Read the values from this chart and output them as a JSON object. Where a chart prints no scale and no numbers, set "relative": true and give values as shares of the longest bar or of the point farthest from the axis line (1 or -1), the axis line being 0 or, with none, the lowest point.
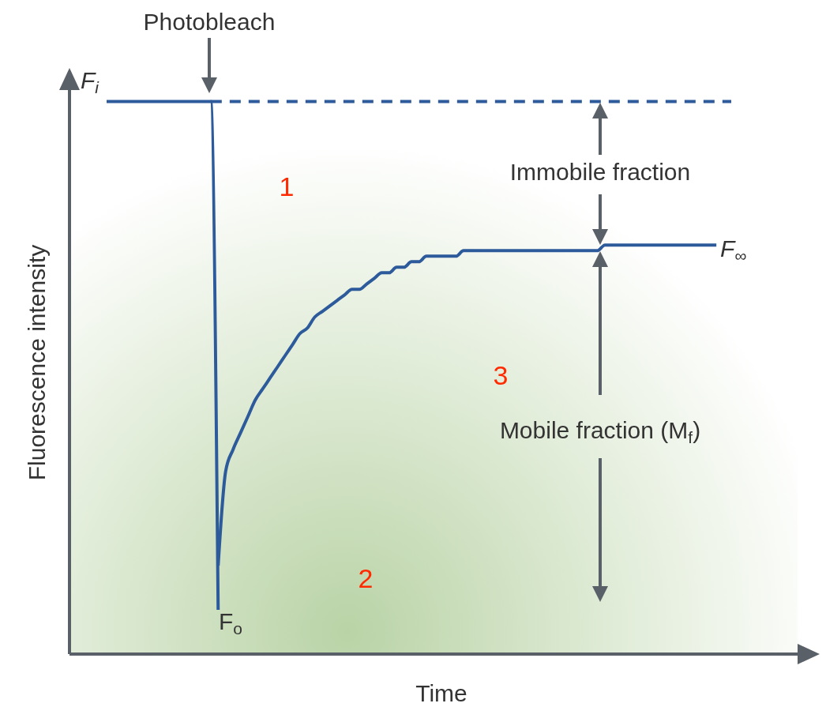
{
  "chart_data": {
    "type": "line",
    "relative": true,
    "xlabel": "Time",
    "ylabel": "Fluorescence intensity",
    "categories": [
      null,
      null,
      null,
      null,
      null,
      null,
      null,
      null,
      null,
      null,
      null,
      null,
      null,
      null,
      null,
      null,
      null,
      null,
      null,
      null,
      null,
      null,
      null,
      null,
      null,
      null,
      null,
      null,
      null,
      null,
      null,
      null,
      null,
      null,
      null,
      null,
      null,
      null,
      null,
      null,
      null,
      null,
      null,
      null,
      null,
      null,
      null,
      null,
      null,
      null,
      null,
      null,
      null,
      null,
      null,
      null,
      null,
      null,
      null,
      null,
      null,
      null,
      null,
      null,
      null,
      null,
      null,
      null,
      null,
      null,
      null,
      null,
      null,
      null,
      null,
      null,
      null,
      null,
      null,
      null,
      null,
      null,
      null,
      null,
      null
    ],
    "series": [
      {
        "color": "#2d5a9a",
        "line_style": "solid",
        "values": [
          1,
          1,
          1,
          1,
          1,
          1,
          1,
          1,
          1,
          1,
          1,
          1,
          1,
          1,
          1,
          0.08,
          null,
          null,
          null,
          null,
          null,
          null,
          null,
          null,
          null,
          null,
          null,
          null,
          null,
          null,
          null,
          null,
          null,
          null,
          null,
          null,
          null,
          null,
          null,
          null,
          null,
          null,
          null,
          null,
          null,
          null,
          null,
          null,
          null,
          null,
          null,
          null,
          null,
          null,
          null,
          null,
          null,
          null,
          null,
          null,
          null,
          null,
          null,
          null,
          null,
          null,
          null,
          null,
          null,
          null,
          null,
          null,
          null,
          null,
          null,
          null,
          null,
          null,
          null,
          null,
          null,
          null,
          null,
          null,
          null
        ]
      },
      {
        "color": "#2d5a9a",
        "line_style": "solid",
        "values": [
          null,
          null,
          null,
          null,
          null,
          null,
          null,
          null,
          null,
          null,
          null,
          null,
          null,
          null,
          null,
          0.16,
          0.33,
          0.37,
          0.4,
          0.43,
          0.46,
          0.48,
          0.5,
          0.52,
          0.54,
          0.56,
          0.58,
          0.59,
          0.61,
          0.62,
          0.63,
          0.64,
          0.65,
          0.66,
          0.66,
          0.67,
          0.68,
          0.69,
          0.69,
          0.7,
          0.7,
          0.71,
          0.71,
          0.72,
          0.72,
          0.72,
          0.72,
          0.72,
          0.73,
          0.73,
          0.73,
          0.73,
          0.73,
          0.73,
          0.73,
          0.73,
          0.73,
          0.73,
          0.73,
          0.73,
          0.73,
          0.73,
          0.73,
          0.73,
          0.73,
          0.73,
          0.73,
          0.74,
          0.74,
          0.74,
          0.74,
          0.74,
          0.74,
          0.74,
          0.74,
          0.74,
          0.74,
          0.74,
          0.74,
          0.74,
          0.74,
          0.74,
          0.74,
          null,
          null
        ]
      },
      {
        "color": "#2d5a9a",
        "line_style": "dashed",
        "values": [
          null,
          null,
          null,
          null,
          null,
          null,
          null,
          null,
          null,
          null,
          null,
          null,
          null,
          null,
          1,
          1,
          1,
          1,
          1,
          1,
          1,
          1,
          1,
          1,
          1,
          1,
          1,
          1,
          1,
          1,
          1,
          1,
          1,
          1,
          1,
          1,
          1,
          1,
          1,
          1,
          1,
          1,
          1,
          1,
          1,
          1,
          1,
          1,
          1,
          1,
          1,
          1,
          1,
          1,
          1,
          1,
          1,
          1,
          1,
          1,
          1,
          1,
          1,
          1,
          1,
          1,
          1,
          1,
          1,
          1,
          1,
          1,
          1,
          1,
          1,
          1,
          1,
          1,
          1,
          1,
          1,
          1,
          1,
          1,
          1
        ]
      }
    ],
    "annotations": [
      "Photobleach",
      "F$_{i}$",
      "Immobile fraction",
      "F$_{∞}$",
      "Mobile fraction (M$_{f}$)",
      "F$_{o}$",
      "1",
      "2",
      "3"
    ]
  }
}
